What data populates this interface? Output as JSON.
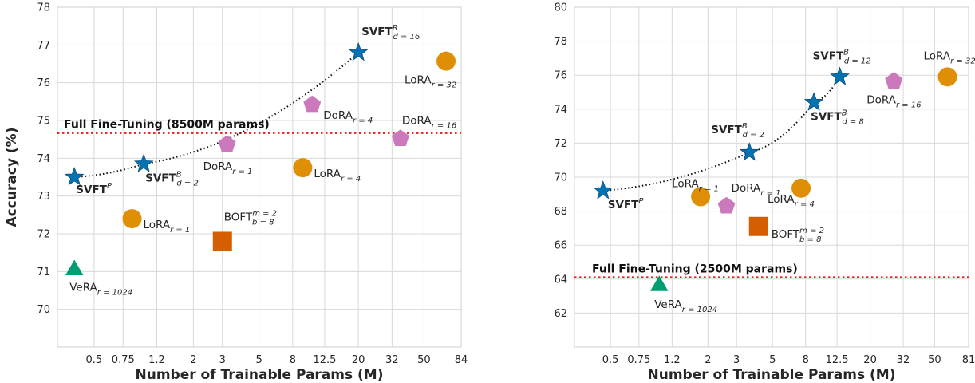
{
  "colors": {
    "SVFT": "#0173b2",
    "LoRA": "#de8f05",
    "DoRA": "#cc78bc",
    "VeRA": "#029e73",
    "BOFT": "#d55e00",
    "full_ft_line": "#ee1c1c",
    "grid": "#d8d8d8"
  },
  "chart_data": [
    {
      "type": "scatter",
      "xlabel": "Number of Trainable Params (M)",
      "ylabel": "Accuracy (%)",
      "xscale": "log",
      "xlim": [
        0.3,
        84
      ],
      "ylim": [
        69,
        78
      ],
      "xticks": [
        0.5,
        0.75,
        1.2,
        2,
        3,
        5,
        8,
        12.5,
        20,
        32,
        50,
        84
      ],
      "xtick_labels": [
        "0.5",
        "0.75",
        "1.2",
        "2",
        "3",
        "5",
        "8",
        "12.5",
        "20",
        "32",
        "50",
        "84"
      ],
      "yticks": [
        70,
        71,
        72,
        73,
        74,
        75,
        76,
        77,
        78
      ],
      "ytick_labels": [
        "70",
        "71",
        "72",
        "73",
        "74",
        "75",
        "76",
        "77",
        "78"
      ],
      "grid": true,
      "reference_line": {
        "label": "Full Fine-Tuning (8500M params)",
        "y": 74.67
      },
      "frontier": [
        [
          0.38,
          73.5
        ],
        [
          1.0,
          73.85
        ],
        [
          20,
          76.8
        ]
      ],
      "points": [
        {
          "method": "SVFT",
          "base": "SVFT",
          "sup": "P",
          "sub": "",
          "x": 0.38,
          "y": 73.5,
          "marker": "star"
        },
        {
          "method": "SVFT",
          "base": "SVFT",
          "sup": "B",
          "sub": "d = 2",
          "x": 1.0,
          "y": 73.85,
          "marker": "star"
        },
        {
          "method": "SVFT",
          "base": "SVFT",
          "sup": "R",
          "sub": "d = 16",
          "x": 20,
          "y": 76.8,
          "marker": "star"
        },
        {
          "method": "LoRA",
          "base": "LoRA",
          "sup": "",
          "sub": "r = 1",
          "x": 0.85,
          "y": 72.4,
          "marker": "circle"
        },
        {
          "method": "LoRA",
          "base": "LoRA",
          "sup": "",
          "sub": "r = 4",
          "x": 9.2,
          "y": 73.75,
          "marker": "circle"
        },
        {
          "method": "LoRA",
          "base": "LoRA",
          "sup": "",
          "sub": "r = 32",
          "x": 68,
          "y": 76.57,
          "marker": "circle"
        },
        {
          "method": "DoRA",
          "base": "DoRA",
          "sup": "",
          "sub": "r = 1",
          "x": 3.2,
          "y": 74.37,
          "marker": "pentagon"
        },
        {
          "method": "DoRA",
          "base": "DoRA",
          "sup": "",
          "sub": "r = 4",
          "x": 10.5,
          "y": 75.42,
          "marker": "pentagon"
        },
        {
          "method": "DoRA",
          "base": "DoRA",
          "sup": "",
          "sub": "r = 16",
          "x": 36,
          "y": 74.52,
          "marker": "pentagon"
        },
        {
          "method": "VeRA",
          "base": "VeRA",
          "sup": "",
          "sub": "r = 1024",
          "x": 0.38,
          "y": 71.08,
          "marker": "triangle"
        },
        {
          "method": "BOFT",
          "base": "BOFT",
          "sup": "m = 2",
          "sub": "b = 8",
          "x": 3.0,
          "y": 71.8,
          "marker": "square"
        }
      ]
    },
    {
      "type": "scatter",
      "xlabel": "Number of Trainable Params (M)",
      "ylabel": "",
      "xscale": "log",
      "xlim": [
        0.3,
        81
      ],
      "ylim": [
        60,
        80
      ],
      "xticks": [
        0.5,
        0.75,
        1.2,
        2,
        3,
        5,
        8,
        12.5,
        20,
        32,
        50,
        81
      ],
      "xtick_labels": [
        "0.5",
        "0.75",
        "1.2",
        "2",
        "3",
        "5",
        "8",
        "12.5",
        "20",
        "32",
        "50",
        "81"
      ],
      "yticks": [
        62,
        64,
        66,
        68,
        70,
        72,
        74,
        76,
        78,
        80
      ],
      "ytick_labels": [
        "62",
        "64",
        "66",
        "68",
        "70",
        "72",
        "74",
        "76",
        "78",
        "80"
      ],
      "grid": true,
      "reference_line": {
        "label": "Full Fine-Tuning (2500M params)",
        "y": 64.1
      },
      "frontier": [
        [
          0.45,
          69.2
        ],
        [
          3.6,
          71.45
        ],
        [
          9.0,
          74.4
        ],
        [
          13,
          75.9
        ]
      ],
      "points": [
        {
          "method": "SVFT",
          "base": "SVFT",
          "sup": "P",
          "sub": "",
          "x": 0.45,
          "y": 69.2,
          "marker": "star"
        },
        {
          "method": "SVFT",
          "base": "SVFT",
          "sup": "B",
          "sub": "d = 2",
          "x": 3.6,
          "y": 71.45,
          "marker": "star"
        },
        {
          "method": "SVFT",
          "base": "SVFT",
          "sup": "B",
          "sub": "d = 8",
          "x": 9.0,
          "y": 74.4,
          "marker": "star"
        },
        {
          "method": "SVFT",
          "base": "SVFT",
          "sup": "B",
          "sub": "d = 12",
          "x": 13,
          "y": 75.9,
          "marker": "star"
        },
        {
          "method": "LoRA",
          "base": "LoRA",
          "sup": "",
          "sub": "r = 1",
          "x": 1.8,
          "y": 68.85,
          "marker": "circle"
        },
        {
          "method": "LoRA",
          "base": "LoRA",
          "sup": "",
          "sub": "r = 4",
          "x": 7.5,
          "y": 69.35,
          "marker": "circle"
        },
        {
          "method": "LoRA",
          "base": "LoRA",
          "sup": "",
          "sub": "r = 32",
          "x": 60,
          "y": 75.9,
          "marker": "circle"
        },
        {
          "method": "DoRA",
          "base": "DoRA",
          "sup": "",
          "sub": "r = 1",
          "x": 2.6,
          "y": 68.3,
          "marker": "pentagon"
        },
        {
          "method": "DoRA",
          "base": "DoRA",
          "sup": "",
          "sub": "r = 16",
          "x": 28,
          "y": 75.65,
          "marker": "pentagon"
        },
        {
          "method": "VeRA",
          "base": "VeRA",
          "sup": "",
          "sub": "r = 1024",
          "x": 1.0,
          "y": 63.7,
          "marker": "triangle"
        },
        {
          "method": "BOFT",
          "base": "BOFT",
          "sup": "m = 2",
          "sub": "b = 8",
          "x": 4.1,
          "y": 67.1,
          "marker": "square"
        }
      ]
    }
  ]
}
